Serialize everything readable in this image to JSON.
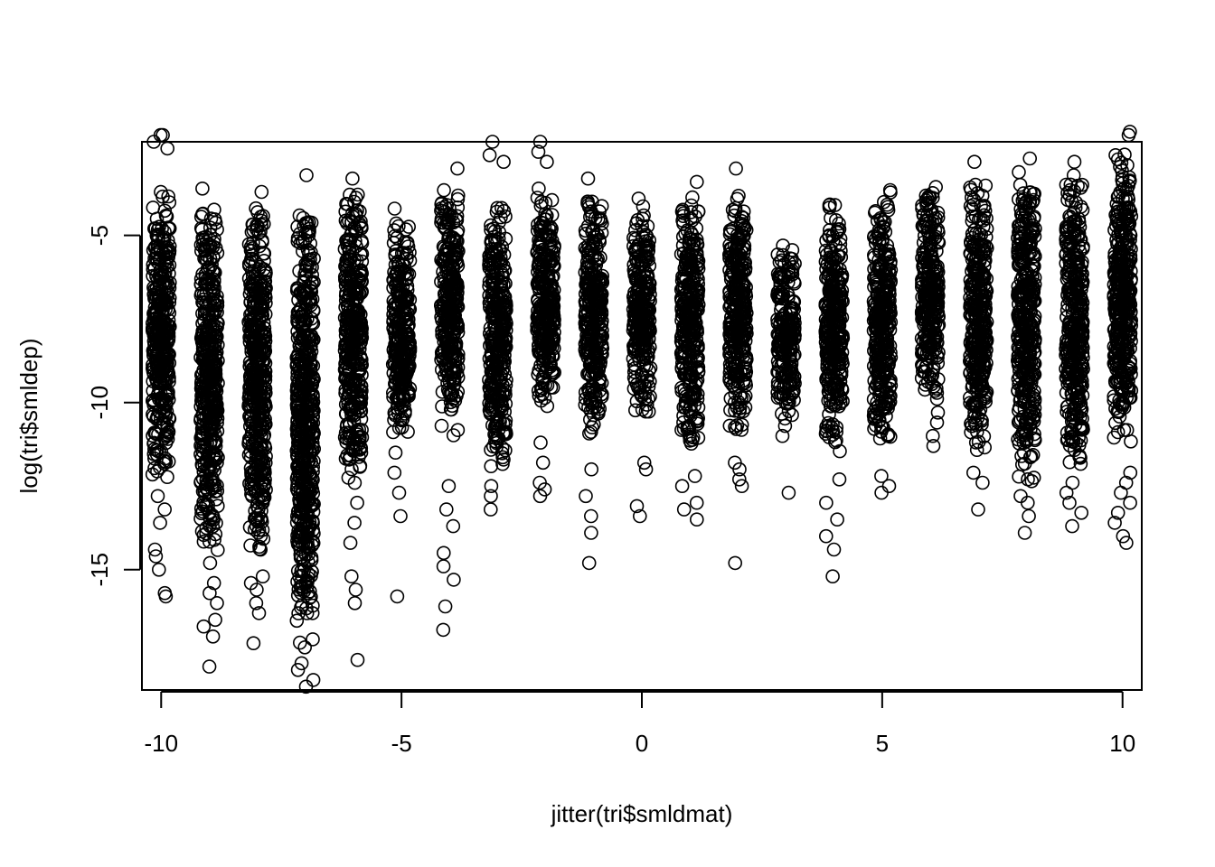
{
  "chart_data": {
    "type": "scatter",
    "title": "",
    "xlabel": "jitter(tri$smldmat)",
    "ylabel": "log(tri$smldep)",
    "xlim": [
      -10.4,
      10.4
    ],
    "ylim": [
      -18.6,
      -2.2
    ],
    "x_ticks": [
      -10,
      -5,
      0,
      5,
      10
    ],
    "y_ticks": [
      -5,
      -10,
      -15
    ],
    "grid": false,
    "legend": "none",
    "marker": "open-circle",
    "color": "#000000",
    "x_categories": [
      -10,
      -9,
      -8,
      -7,
      -6,
      -5,
      -4,
      -3,
      -2,
      -1,
      0,
      1,
      2,
      3,
      4,
      5,
      6,
      7,
      8,
      9,
      10
    ],
    "clusters": [
      {
        "x": -10,
        "dense_y": [
          -12.5,
          -3.5
        ],
        "outliers": [
          -15.8,
          -15.0,
          -14.6,
          -14.4,
          -13.6,
          -13.2,
          -12.8,
          -15.7,
          -2.4,
          -2.2,
          -2.0,
          -2.0
        ]
      },
      {
        "x": -9,
        "dense_y": [
          -14.5,
          -4.0
        ],
        "outliers": [
          -17.9,
          -17.0,
          -16.7,
          -16.5,
          -16.0,
          -15.7,
          -15.4,
          -14.8,
          -3.6
        ]
      },
      {
        "x": -8,
        "dense_y": [
          -15.0,
          -4.0
        ],
        "outliers": [
          -17.2,
          -16.3,
          -16.0,
          -15.6,
          -15.4,
          -15.2,
          -3.7
        ]
      },
      {
        "x": -7,
        "dense_y": [
          -17.5,
          -3.8
        ],
        "outliers": [
          -18.5,
          -18.3,
          -18.0,
          -17.8,
          -3.2
        ]
      },
      {
        "x": -6,
        "dense_y": [
          -12.5,
          -3.6
        ],
        "outliers": [
          -17.7,
          -16.0,
          -15.6,
          -15.2,
          -14.2,
          -13.6,
          -13.0,
          -3.3
        ]
      },
      {
        "x": -5,
        "dense_y": [
          -11.0,
          -4.5
        ],
        "outliers": [
          -15.8,
          -13.4,
          -12.7,
          -12.1,
          -11.5,
          -4.2
        ]
      },
      {
        "x": -4,
        "dense_y": [
          -11.0,
          -3.5
        ],
        "outliers": [
          -16.8,
          -16.1,
          -15.3,
          -14.9,
          -14.5,
          -13.7,
          -13.2,
          -12.5,
          -3.0
        ]
      },
      {
        "x": -3,
        "dense_y": [
          -12.0,
          -4.0
        ],
        "outliers": [
          -13.2,
          -12.8,
          -12.5,
          -2.8,
          -2.6,
          -2.2
        ]
      },
      {
        "x": -2,
        "dense_y": [
          -10.5,
          -3.5
        ],
        "outliers": [
          -12.8,
          -12.6,
          -12.4,
          -11.8,
          -11.2,
          -2.8,
          -2.5,
          -2.2
        ]
      },
      {
        "x": -1,
        "dense_y": [
          -11.0,
          -3.8
        ],
        "outliers": [
          -14.8,
          -13.9,
          -13.4,
          -12.8,
          -12.0,
          -3.3
        ]
      },
      {
        "x": 0,
        "dense_y": [
          -10.5,
          -4.0
        ],
        "outliers": [
          -13.4,
          -13.1,
          -12.0,
          -11.8,
          -3.9
        ]
      },
      {
        "x": 1,
        "dense_y": [
          -11.5,
          -3.7
        ],
        "outliers": [
          -13.5,
          -13.2,
          -13.0,
          -12.5,
          -12.2,
          -3.4
        ]
      },
      {
        "x": 2,
        "dense_y": [
          -11.0,
          -3.8
        ],
        "outliers": [
          -14.8,
          -12.5,
          -12.3,
          -12.0,
          -11.8,
          -3.0
        ]
      },
      {
        "x": 3,
        "dense_y": [
          -10.5,
          -5.3
        ],
        "outliers": [
          -12.7,
          -11.0,
          -10.7
        ]
      },
      {
        "x": 4,
        "dense_y": [
          -11.5,
          -4.0
        ],
        "outliers": [
          -15.2,
          -14.4,
          -14.0,
          -13.5,
          -13.0,
          -12.3
        ]
      },
      {
        "x": 5,
        "dense_y": [
          -11.5,
          -3.6
        ],
        "outliers": [
          -12.7,
          -12.5,
          -12.2
        ]
      },
      {
        "x": 6,
        "dense_y": [
          -10.0,
          -3.5
        ],
        "outliers": [
          -11.3,
          -11.0,
          -10.6,
          -10.3
        ]
      },
      {
        "x": 7,
        "dense_y": [
          -11.5,
          -3.2
        ],
        "outliers": [
          -13.2,
          -12.4,
          -12.1,
          -2.8
        ]
      },
      {
        "x": 8,
        "dense_y": [
          -12.5,
          -3.0
        ],
        "outliers": [
          -13.9,
          -13.4,
          -13.0,
          -12.8,
          -2.7
        ]
      },
      {
        "x": 9,
        "dense_y": [
          -12.0,
          -3.0
        ],
        "outliers": [
          -13.7,
          -13.3,
          -13.0,
          -12.7,
          -12.4,
          -2.8
        ]
      },
      {
        "x": 10,
        "dense_y": [
          -11.5,
          -2.2
        ],
        "outliers": [
          -14.2,
          -14.0,
          -13.6,
          -13.3,
          -13.0,
          -12.7,
          -12.4,
          -12.1,
          -2.0,
          -1.9
        ]
      }
    ]
  }
}
